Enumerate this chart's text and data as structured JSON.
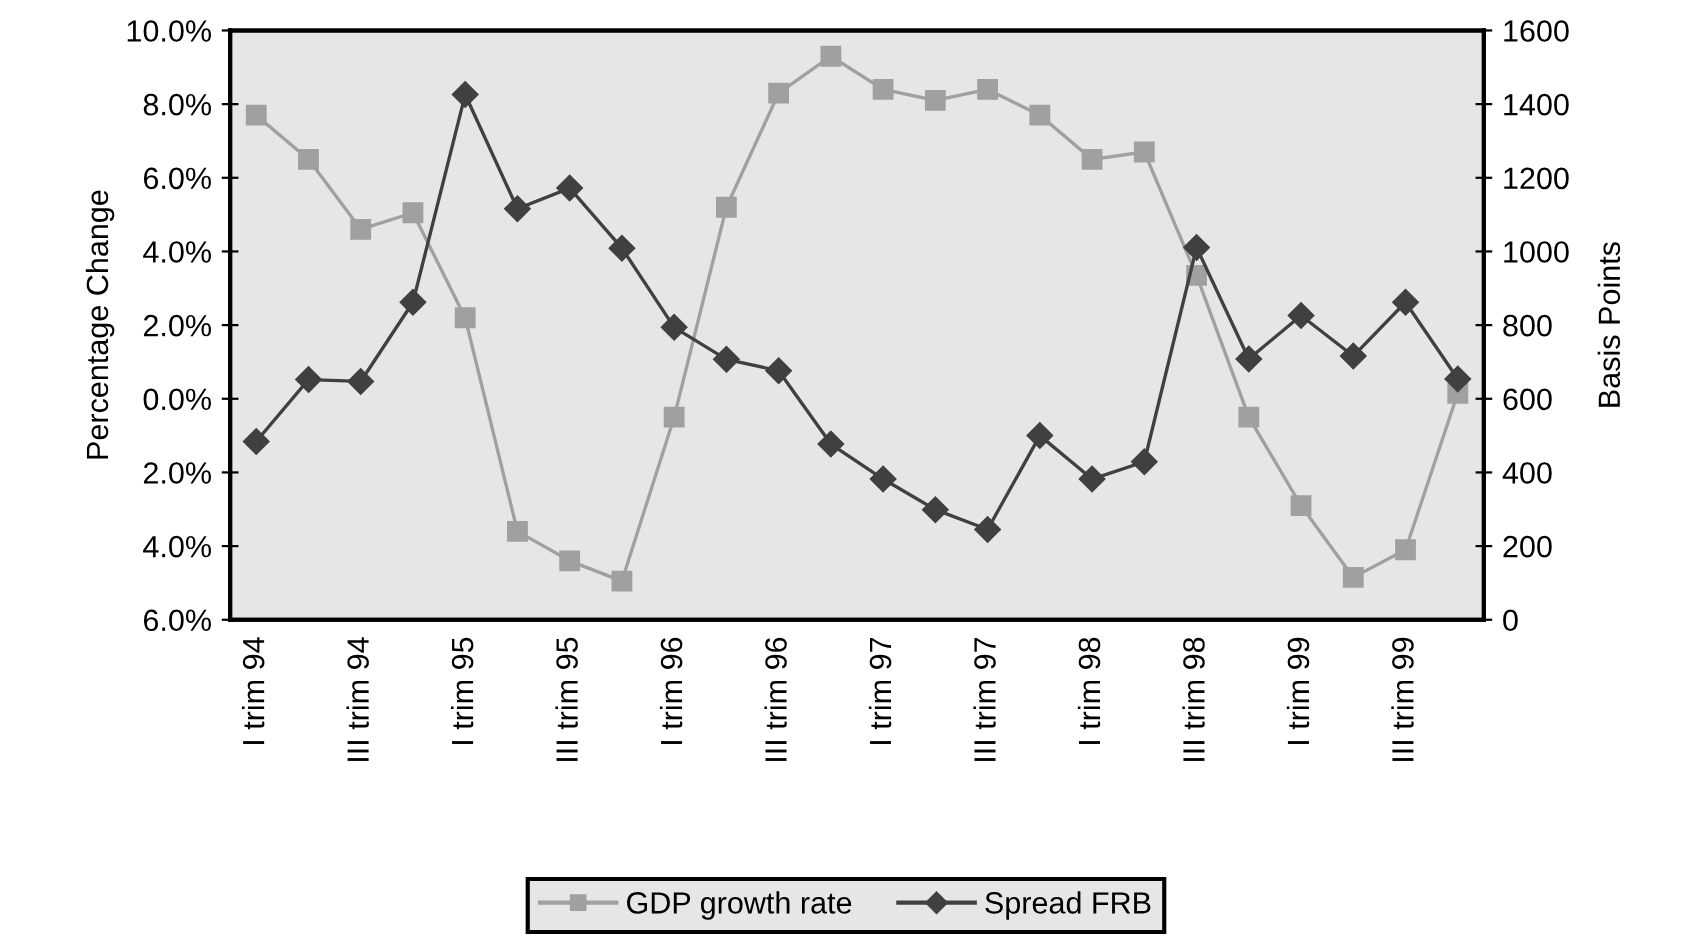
{
  "chart_data": {
    "type": "line",
    "xlabel": null,
    "ylabel": "Percentage Change",
    "y2label": "Basis Points",
    "categories": [
      "I trim 94",
      null,
      "III trim 94",
      null,
      "I trim 95",
      null,
      "III trim 95",
      null,
      "I trim 96",
      null,
      "III trim 96",
      null,
      "I trim 97",
      null,
      "III trim 97",
      null,
      "I trim 98",
      null,
      "III trim 98",
      null,
      "I trim 99",
      null,
      "III trim 99",
      null
    ],
    "series": [
      {
        "name": "GDP growth rate",
        "color": "#a0a0a0",
        "marker": "square",
        "values": [
          7.7,
          6.5,
          4.6,
          5.05,
          2.2,
          -3.6,
          -4.4,
          -4.95,
          -0.5,
          5.2,
          8.3,
          9.3,
          8.4,
          8.1,
          8.4,
          7.7,
          6.5,
          6.7,
          3.35,
          -0.5,
          -2.9,
          -4.85,
          -4.1,
          0.15
        ]
      },
      {
        "name": "Spread FRB",
        "color": "#404040",
        "marker": "diamond",
        "axis": "y2",
        "values": [
          484,
          652,
          647,
          862,
          1426,
          1116,
          1172,
          1009,
          794,
          707,
          676,
          477,
          382,
          299,
          245,
          500,
          382,
          429,
          1011,
          708,
          826,
          716,
          862,
          654
        ]
      }
    ],
    "ylim": [
      -6,
      10
    ],
    "yticks": [
      {
        "value": -6,
        "label": "6.0%"
      },
      {
        "value": -4,
        "label": "4.0%"
      },
      {
        "value": -2,
        "label": "2.0%"
      },
      {
        "value": 0,
        "label": "0.0%"
      },
      {
        "value": 2,
        "label": "2.0%"
      },
      {
        "value": 4,
        "label": "4.0%"
      },
      {
        "value": 6,
        "label": "6.0%"
      },
      {
        "value": 8,
        "label": "8.0%"
      },
      {
        "value": 10,
        "label": "10.0%"
      }
    ],
    "y2lim": [
      0,
      1600
    ],
    "y2ticks": [
      0,
      200,
      400,
      600,
      800,
      1000,
      1200,
      1400,
      1600
    ],
    "grid": false,
    "legend": "bottom",
    "line_style": "solid"
  }
}
